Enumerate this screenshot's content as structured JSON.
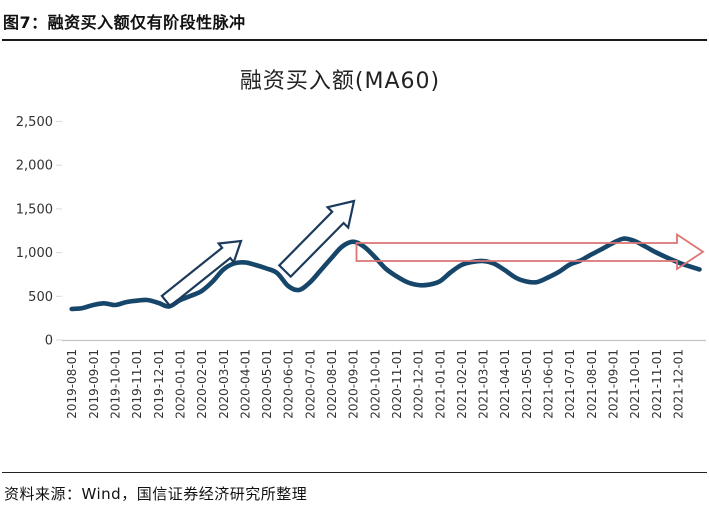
{
  "figure_title": "图7：融资买入额仅有阶段性脉冲",
  "source_note": "资料来源：Wind，国信证券经济研究所整理",
  "colors": {
    "line": "#17466b",
    "pulse_arrow": "#1b3a5c",
    "sideways_arrow": "#dc7474",
    "axis_line": "#c4c4c4",
    "tick_mark": "#d9d9d9",
    "tick_text": "#333333",
    "divider": "#111111"
  },
  "chart_data": {
    "type": "line",
    "title": "融资买入额(MA60)",
    "xlabel": "",
    "ylabel": "",
    "ylim": [
      0,
      2500
    ],
    "y_tick_step": 500,
    "grid": false,
    "legend": "none",
    "y_ticks": [
      {
        "value": 0,
        "label": "0"
      },
      {
        "value": 500,
        "label": "500"
      },
      {
        "value": 1000,
        "label": "1,000"
      },
      {
        "value": 1500,
        "label": "1,500"
      },
      {
        "value": 2000,
        "label": "2,000"
      },
      {
        "value": 2500,
        "label": "2,500"
      }
    ],
    "x_tick_labels": [
      "2019-08-01",
      "2019-09-01",
      "2019-10-01",
      "2019-11-01",
      "2019-12-01",
      "2020-01-01",
      "2020-02-01",
      "2020-03-01",
      "2020-04-01",
      "2020-05-01",
      "2020-06-01",
      "2020-07-01",
      "2020-08-01",
      "2020-09-01",
      "2020-10-01",
      "2020-11-01",
      "2020-12-01",
      "2021-01-01",
      "2021-02-01",
      "2021-03-01",
      "2021-04-01",
      "2021-05-01",
      "2021-06-01",
      "2021-07-01",
      "2021-08-01",
      "2021-09-01",
      "2021-10-01",
      "2021-11-01",
      "2021-12-01"
    ],
    "series": [
      {
        "name": "融资买入额(MA60)",
        "points": [
          [
            "2019-08-01",
            355
          ],
          [
            "2019-08-16",
            365
          ],
          [
            "2019-09-01",
            400
          ],
          [
            "2019-09-16",
            420
          ],
          [
            "2019-10-01",
            400
          ],
          [
            "2019-10-16",
            432
          ],
          [
            "2019-11-01",
            450
          ],
          [
            "2019-11-16",
            458
          ],
          [
            "2019-12-01",
            425
          ],
          [
            "2019-12-16",
            383
          ],
          [
            "2020-01-01",
            455
          ],
          [
            "2020-01-16",
            505
          ],
          [
            "2020-02-01",
            560
          ],
          [
            "2020-02-16",
            665
          ],
          [
            "2020-03-01",
            805
          ],
          [
            "2020-03-16",
            875
          ],
          [
            "2020-04-01",
            888
          ],
          [
            "2020-04-16",
            858
          ],
          [
            "2020-05-01",
            818
          ],
          [
            "2020-05-16",
            766
          ],
          [
            "2020-06-01",
            618
          ],
          [
            "2020-06-16",
            572
          ],
          [
            "2020-07-01",
            658
          ],
          [
            "2020-07-16",
            795
          ],
          [
            "2020-08-01",
            938
          ],
          [
            "2020-08-16",
            1070
          ],
          [
            "2020-09-01",
            1125
          ],
          [
            "2020-09-16",
            1070
          ],
          [
            "2020-10-01",
            950
          ],
          [
            "2020-10-16",
            818
          ],
          [
            "2020-11-01",
            730
          ],
          [
            "2020-11-16",
            663
          ],
          [
            "2020-12-01",
            629
          ],
          [
            "2020-12-16",
            633
          ],
          [
            "2021-01-01",
            670
          ],
          [
            "2021-01-16",
            772
          ],
          [
            "2021-02-01",
            858
          ],
          [
            "2021-02-16",
            892
          ],
          [
            "2021-03-01",
            904
          ],
          [
            "2021-03-16",
            875
          ],
          [
            "2021-04-01",
            800
          ],
          [
            "2021-04-16",
            715
          ],
          [
            "2021-05-01",
            669
          ],
          [
            "2021-05-16",
            663
          ],
          [
            "2021-06-01",
            715
          ],
          [
            "2021-06-16",
            778
          ],
          [
            "2021-07-01",
            862
          ],
          [
            "2021-07-16",
            909
          ],
          [
            "2021-08-01",
            978
          ],
          [
            "2021-08-16",
            1041
          ],
          [
            "2021-09-01",
            1110
          ],
          [
            "2021-09-16",
            1160
          ],
          [
            "2021-10-01",
            1133
          ],
          [
            "2021-10-16",
            1070
          ],
          [
            "2021-11-01",
            1001
          ],
          [
            "2021-11-16",
            944
          ],
          [
            "2021-12-01",
            890
          ],
          [
            "2021-12-16",
            845
          ],
          [
            "2022-01-01",
            808
          ]
        ]
      }
    ],
    "annotations": [
      {
        "shape": "up-right-arrow",
        "style": "hollow outline",
        "from": "2019-12",
        "to": "2020-04"
      },
      {
        "shape": "up-right-arrow",
        "style": "hollow outline",
        "from": "2020-06",
        "to": "2020-09"
      },
      {
        "shape": "right-arrow",
        "style": "hollow outline",
        "from": "2020-09",
        "to": "2022-01"
      }
    ]
  }
}
